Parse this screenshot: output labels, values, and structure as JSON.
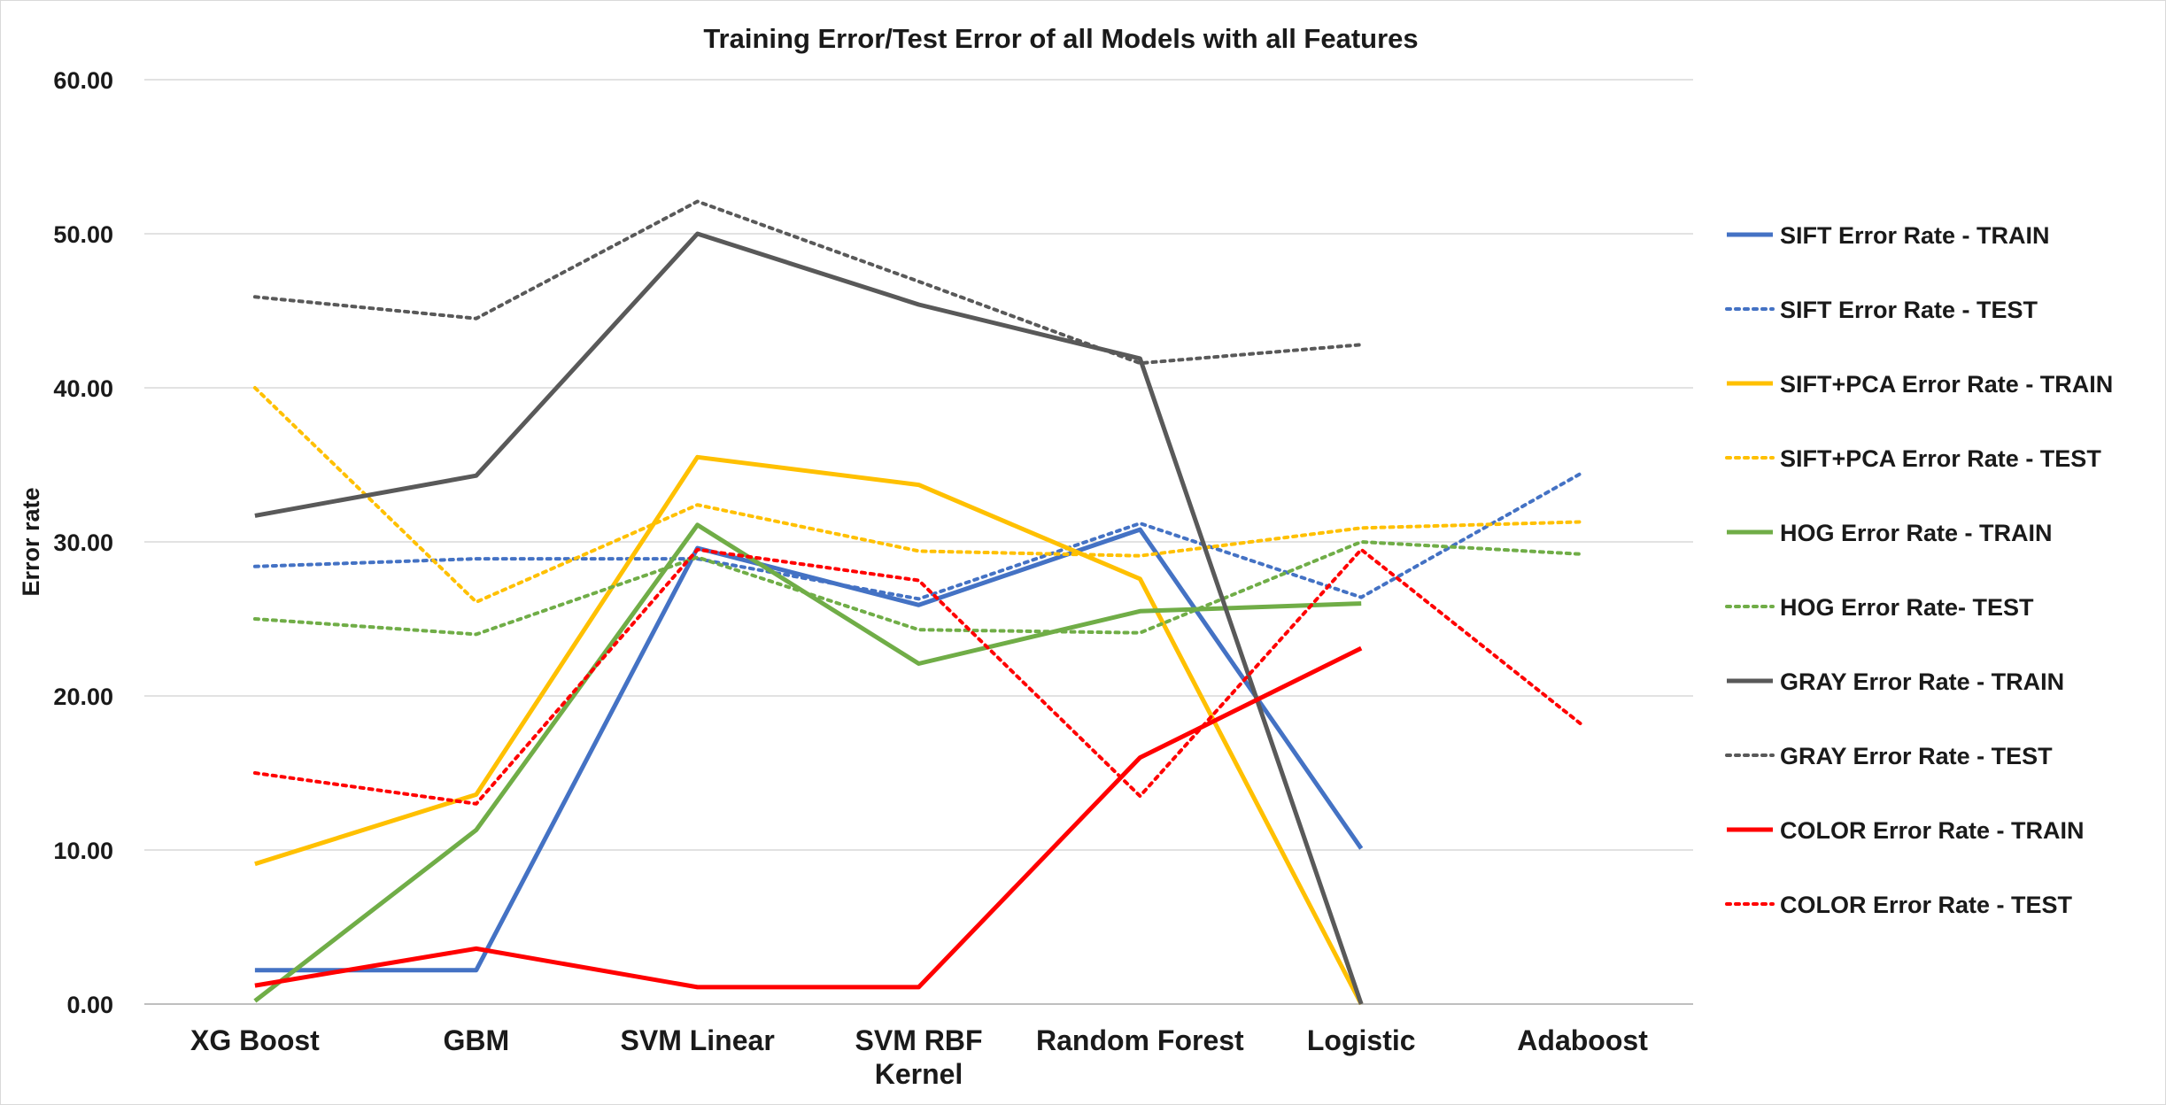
{
  "chart_data": {
    "type": "line",
    "title": "Training Error/Test Error of all Models with all Features",
    "xlabel": "",
    "ylabel": "Error rate",
    "ylim": [
      0,
      60
    ],
    "yticks": [
      "0.00",
      "10.00",
      "20.00",
      "30.00",
      "40.00",
      "50.00",
      "60.00"
    ],
    "categories": [
      "XG Boost",
      "GBM",
      "SVM Linear",
      "SVM RBF Kernel",
      "Random Forest",
      "Logistic",
      "Adaboost"
    ],
    "category_lines": [
      [
        "XG Boost"
      ],
      [
        "GBM"
      ],
      [
        "SVM Linear"
      ],
      [
        "SVM RBF",
        "Kernel"
      ],
      [
        "Random Forest"
      ],
      [
        "Logistic"
      ],
      [
        "Adaboost"
      ]
    ],
    "grid": true,
    "legend_position": "right",
    "series": [
      {
        "name": "SIFT Error Rate - TRAIN",
        "color": "#4472c4",
        "style": "solid",
        "values": [
          2.2,
          2.2,
          29.6,
          25.9,
          30.8,
          10.1,
          null
        ]
      },
      {
        "name": "SIFT Error Rate - TEST",
        "color": "#4472c4",
        "style": "dotted",
        "values": [
          28.4,
          28.9,
          28.9,
          26.3,
          31.2,
          26.4,
          34.5
        ]
      },
      {
        "name": "SIFT+PCA Error Rate - TRAIN",
        "color": "#ffc000",
        "style": "solid",
        "values": [
          9.1,
          13.6,
          35.5,
          33.7,
          27.6,
          0.0,
          null
        ]
      },
      {
        "name": "SIFT+PCA Error Rate - TEST",
        "color": "#ffc000",
        "style": "dotted",
        "values": [
          40.0,
          26.1,
          32.4,
          29.4,
          29.1,
          30.9,
          31.3
        ]
      },
      {
        "name": "HOG Error Rate - TRAIN",
        "color": "#70ad47",
        "style": "solid",
        "values": [
          0.2,
          11.3,
          31.1,
          22.1,
          25.5,
          26.0,
          null
        ]
      },
      {
        "name": "HOG Error Rate- TEST",
        "color": "#70ad47",
        "style": "dotted",
        "values": [
          25.0,
          24.0,
          29.0,
          24.3,
          24.1,
          30.0,
          29.2
        ]
      },
      {
        "name": "GRAY Error Rate - TRAIN",
        "color": "#595959",
        "style": "solid",
        "values": [
          31.7,
          34.3,
          50.0,
          45.4,
          41.9,
          0.0,
          null
        ]
      },
      {
        "name": "GRAY Error Rate - TEST",
        "color": "#595959",
        "style": "dotted",
        "values": [
          45.9,
          44.5,
          52.1,
          46.9,
          41.6,
          42.8,
          null
        ]
      },
      {
        "name": "COLOR Error Rate - TRAIN",
        "color": "#ff0000",
        "style": "solid",
        "values": [
          1.2,
          3.6,
          1.1,
          1.1,
          16.0,
          23.1,
          null
        ]
      },
      {
        "name": "COLOR Error Rate - TEST",
        "color": "#ff0000",
        "style": "dotted",
        "values": [
          15.0,
          13.0,
          29.5,
          27.5,
          13.5,
          29.5,
          18.1
        ]
      }
    ]
  }
}
